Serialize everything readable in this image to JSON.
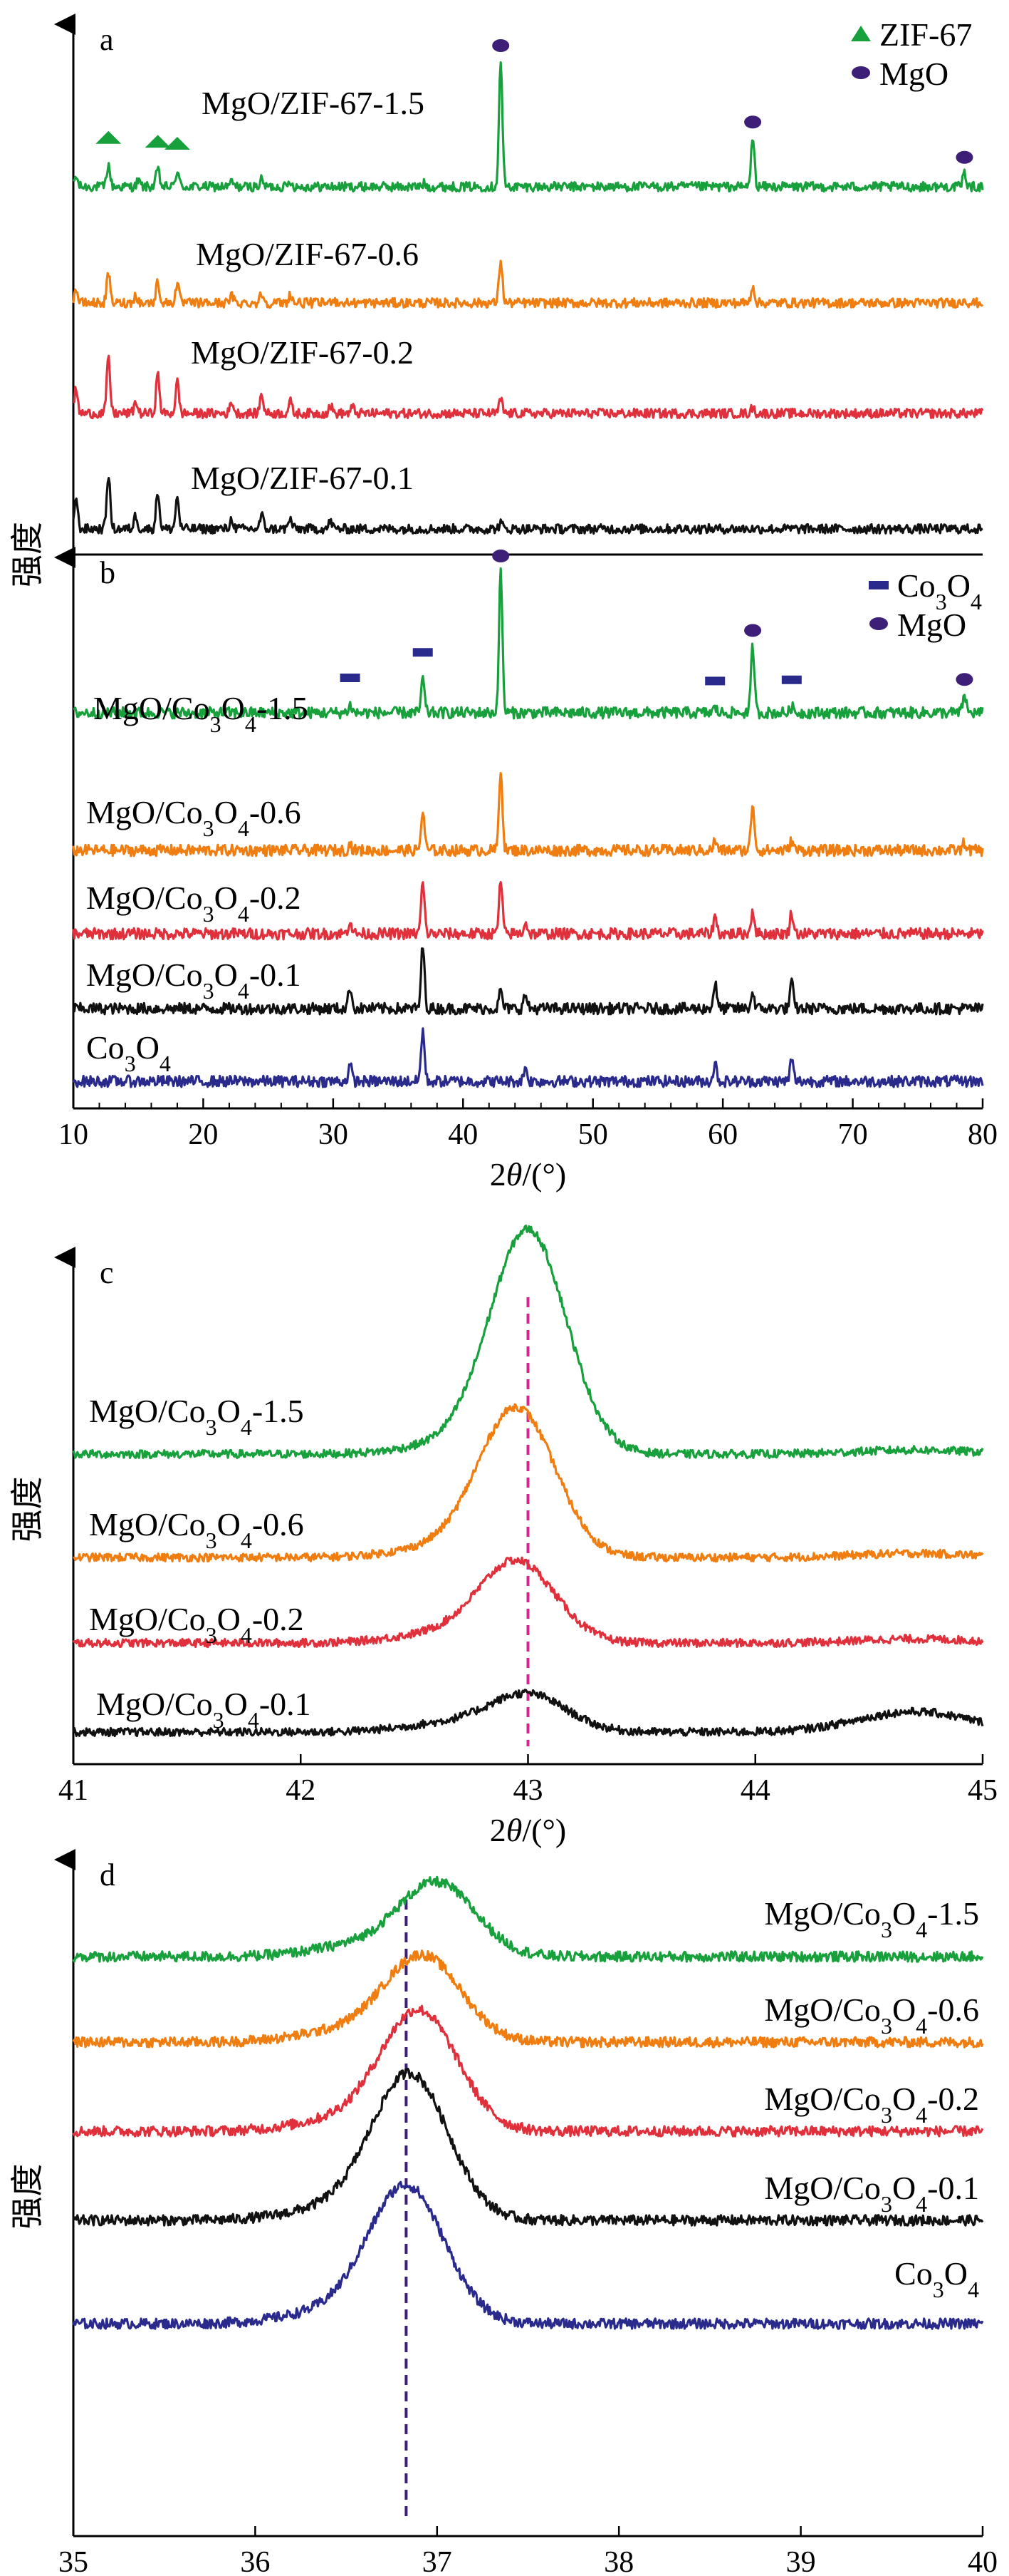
{
  "colors": {
    "green": "#17a03c",
    "orange": "#f07d0f",
    "red": "#e0303c",
    "black": "#111111",
    "navy": "#2a2a8c",
    "purple": "#3d1f78",
    "magenta": "#d4258c"
  },
  "shared": {
    "ylabel": "强度",
    "xlabel_prefix": "2",
    "xlabel_theta": "θ",
    "xlabel_suffix": "/(°)"
  },
  "chart_data": [
    {
      "panel": "a",
      "type": "line",
      "xlim": [
        10,
        80
      ],
      "xticks": [],
      "legend": [
        {
          "marker": "triangle",
          "label": "ZIF-67",
          "color": "#17a03c"
        },
        {
          "marker": "ellipse",
          "label": "MgO",
          "color": "#3d1f78"
        }
      ],
      "series": [
        {
          "name": "MgO/ZIF-67-1.5",
          "color": "#17a03c",
          "baseline": 0.88,
          "peaks": [
            [
              10.2,
              0.25
            ],
            [
              12.7,
              0.55
            ],
            [
              15.0,
              0.15
            ],
            [
              16.5,
              0.45
            ],
            [
              18.0,
              0.4
            ],
            [
              22.2,
              0.12
            ],
            [
              24.5,
              0.18
            ],
            [
              26.7,
              0.14
            ],
            [
              37.0,
              0.08
            ],
            [
              42.9,
              3.2
            ],
            [
              62.3,
              1.25
            ],
            [
              78.6,
              0.35
            ]
          ]
        },
        {
          "name": "MgO/ZIF-67-0.6",
          "color": "#f07d0f",
          "baseline": 0.8,
          "peaks": [
            [
              10.2,
              0.35
            ],
            [
              12.7,
              0.75
            ],
            [
              14.8,
              0.2
            ],
            [
              16.5,
              0.55
            ],
            [
              18.0,
              0.5
            ],
            [
              22.2,
              0.18
            ],
            [
              24.5,
              0.25
            ],
            [
              26.7,
              0.22
            ],
            [
              30.0,
              0.12
            ],
            [
              42.9,
              1.1
            ],
            [
              62.3,
              0.45
            ],
            [
              78.6,
              0.1
            ]
          ]
        },
        {
          "name": "MgO/ZIF-67-0.2",
          "color": "#e0303c",
          "baseline": 0.8,
          "peaks": [
            [
              10.2,
              0.6
            ],
            [
              12.7,
              1.4
            ],
            [
              14.8,
              0.3
            ],
            [
              16.5,
              1.0
            ],
            [
              18.0,
              0.8
            ],
            [
              22.2,
              0.3
            ],
            [
              24.5,
              0.5
            ],
            [
              26.7,
              0.3
            ],
            [
              29.8,
              0.2
            ],
            [
              31.5,
              0.15
            ],
            [
              42.9,
              0.35
            ],
            [
              62.3,
              0.15
            ]
          ]
        },
        {
          "name": "MgO/ZIF-67-0.1",
          "color": "#111111",
          "baseline": 0.8,
          "peaks": [
            [
              10.2,
              0.8
            ],
            [
              12.7,
              1.4
            ],
            [
              14.8,
              0.35
            ],
            [
              16.5,
              0.95
            ],
            [
              18.0,
              0.8
            ],
            [
              22.2,
              0.25
            ],
            [
              24.5,
              0.35
            ],
            [
              26.7,
              0.25
            ],
            [
              29.8,
              0.2
            ],
            [
              42.9,
              0.15
            ]
          ]
        }
      ],
      "annotations": {
        "triangles_at": [
          12.7,
          16.5,
          18.0
        ],
        "ellipses_at": [
          42.9,
          62.3,
          78.6
        ]
      }
    },
    {
      "panel": "b",
      "type": "line",
      "xlim": [
        10,
        80
      ],
      "xticks": [
        10,
        20,
        30,
        40,
        50,
        60,
        70,
        80
      ],
      "legend": [
        {
          "marker": "rect",
          "label": "Co₃O₄",
          "color": "#2a2a8c"
        },
        {
          "marker": "ellipse",
          "label": "MgO",
          "color": "#3d1f78"
        }
      ],
      "series": [
        {
          "name": "MgO/Co₃O₄-1.5",
          "color": "#17a03c",
          "baseline": 0.85,
          "peaks": [
            [
              31.3,
              0.2
            ],
            [
              36.9,
              0.85
            ],
            [
              42.9,
              3.6
            ],
            [
              59.4,
              0.12
            ],
            [
              62.3,
              1.7
            ],
            [
              65.3,
              0.15
            ],
            [
              78.6,
              0.45
            ]
          ]
        },
        {
          "name": "MgO/Co₃O₄-0.6",
          "color": "#f07d0f",
          "baseline": 0.85,
          "peaks": [
            [
              31.3,
              0.15
            ],
            [
              36.9,
              1.0
            ],
            [
              42.9,
              2.1
            ],
            [
              59.4,
              0.25
            ],
            [
              62.3,
              1.2
            ],
            [
              65.3,
              0.25
            ],
            [
              78.6,
              0.2
            ]
          ]
        },
        {
          "name": "MgO/Co₃O₄-0.2",
          "color": "#e0303c",
          "baseline": 0.85,
          "peaks": [
            [
              31.3,
              0.35
            ],
            [
              36.9,
              1.3
            ],
            [
              42.9,
              1.35
            ],
            [
              44.8,
              0.3
            ],
            [
              59.4,
              0.45
            ],
            [
              62.3,
              0.6
            ],
            [
              65.3,
              0.55
            ]
          ]
        },
        {
          "name": "MgO/Co₃O₄-0.1",
          "color": "#111111",
          "baseline": 0.85,
          "peaks": [
            [
              31.3,
              0.55
            ],
            [
              36.9,
              1.6
            ],
            [
              42.9,
              0.45
            ],
            [
              44.8,
              0.35
            ],
            [
              59.4,
              0.65
            ],
            [
              62.3,
              0.4
            ],
            [
              65.3,
              0.65
            ]
          ]
        },
        {
          "name": "Co₃O₄",
          "color": "#2a2a8c",
          "baseline": 0.85,
          "peaks": [
            [
              31.3,
              0.4
            ],
            [
              36.9,
              1.3
            ],
            [
              44.8,
              0.35
            ],
            [
              59.4,
              0.45
            ],
            [
              65.3,
              0.55
            ]
          ]
        }
      ],
      "annotations": {
        "rects_at": [
          31.3,
          36.9,
          59.4,
          65.3
        ],
        "ellipses_at": [
          42.9,
          62.3,
          78.6
        ]
      }
    },
    {
      "panel": "c",
      "type": "line",
      "xlim": [
        41,
        45
      ],
      "xticks": [
        41,
        42,
        43,
        44,
        45
      ],
      "ref_line": 43.0,
      "series": [
        {
          "name": "MgO/Co₃O₄-1.5",
          "color": "#17a03c",
          "center": 43.0,
          "height": 3.3
        },
        {
          "name": "MgO/Co₃O₄-0.6",
          "color": "#f07d0f",
          "center": 42.95,
          "height": 2.2
        },
        {
          "name": "MgO/Co₃O₄-0.2",
          "color": "#e0303c",
          "center": 42.95,
          "height": 1.2
        },
        {
          "name": "MgO/Co₃O₄-0.1",
          "color": "#111111",
          "center": 43.0,
          "height": 0.55
        }
      ]
    },
    {
      "panel": "d",
      "type": "line",
      "xlim": [
        35,
        40
      ],
      "xticks": [
        35,
        36,
        37,
        38,
        39,
        40
      ],
      "ref_line": 36.83,
      "series": [
        {
          "name": "MgO/Co₃O₄-1.5",
          "color": "#17a03c",
          "center": 37.0,
          "height": 0.85
        },
        {
          "name": "MgO/Co₃O₄-0.6",
          "color": "#f07d0f",
          "center": 36.92,
          "height": 1.0
        },
        {
          "name": "MgO/Co₃O₄-0.2",
          "color": "#e0303c",
          "center": 36.9,
          "height": 1.4
        },
        {
          "name": "MgO/Co₃O₄-0.1",
          "color": "#111111",
          "center": 36.85,
          "height": 1.7
        },
        {
          "name": "Co₃O₄",
          "color": "#2a2a8c",
          "center": 36.83,
          "height": 1.6
        }
      ]
    }
  ]
}
